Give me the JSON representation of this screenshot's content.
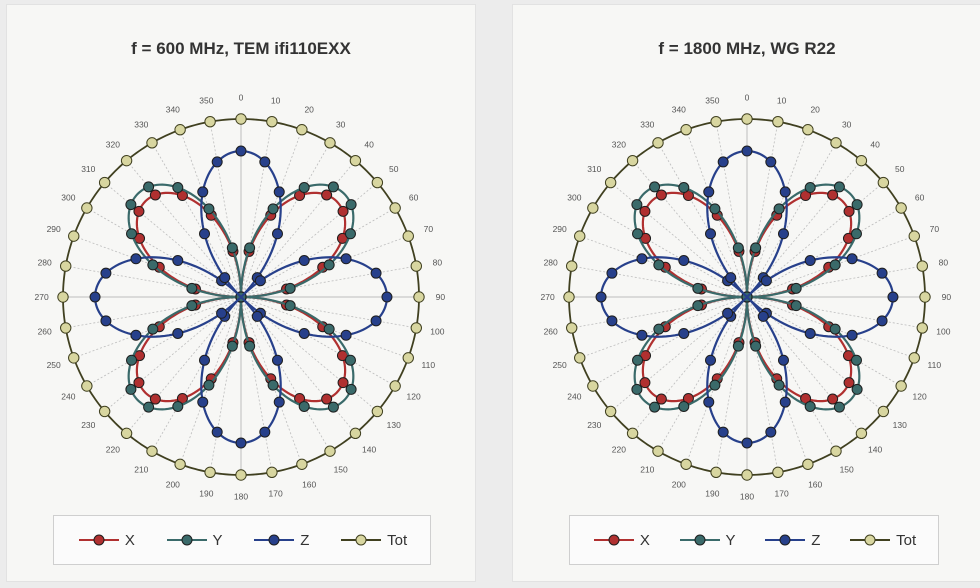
{
  "colors": {
    "X": "#b03030",
    "Y": "#3a6a6a",
    "Z": "#27408b",
    "Tot": "#d8d6a0",
    "ring": "#404020",
    "grid": "#bdbdbd"
  },
  "chart_data": [
    {
      "type": "polar",
      "title": "f = 600 MHz, TEM ifi110EXX",
      "angle_ticks_deg": [
        0,
        10,
        20,
        30,
        40,
        50,
        60,
        70,
        80,
        90,
        100,
        110,
        120,
        130,
        140,
        150,
        160,
        170,
        180,
        190,
        200,
        210,
        220,
        230,
        240,
        250,
        260,
        270,
        280,
        290,
        300,
        310,
        320,
        330,
        340,
        350
      ],
      "angle_labels": [
        "0",
        "10",
        "20",
        "30",
        "40",
        "50",
        "60",
        "70",
        "80",
        "90",
        "100",
        "110",
        "120",
        "130",
        "140",
        "150",
        "160",
        "170",
        "180",
        "190",
        "200",
        "210",
        "220",
        "230",
        "240",
        "250",
        "260",
        "270",
        "280",
        "290",
        "300",
        "310",
        "320",
        "330",
        "340",
        "350"
      ],
      "series": [
        {
          "name": "X",
          "model": "|sin(2θ)| lobes at 45°,135°,225°,315°",
          "peak": 0.76
        },
        {
          "name": "Y",
          "model": "|sin(2θ)| lobes at 45°,135°,225°,315°",
          "peak": 0.82
        },
        {
          "name": "Z",
          "model": "|cos(2θ)| lobes at 0°,90°,180°,270°",
          "peak": 0.82
        },
        {
          "name": "Tot",
          "model": "constant",
          "value": 1.0
        }
      ],
      "legend": [
        "X",
        "Y",
        "Z",
        "Tot"
      ],
      "legend_position": "bottom"
    },
    {
      "type": "polar",
      "title": "f = 1800 MHz, WG R22",
      "angle_ticks_deg": [
        0,
        10,
        20,
        30,
        40,
        50,
        60,
        70,
        80,
        90,
        100,
        110,
        120,
        130,
        140,
        150,
        160,
        170,
        180,
        190,
        200,
        210,
        220,
        230,
        240,
        250,
        260,
        270,
        280,
        290,
        300,
        310,
        320,
        330,
        340,
        350
      ],
      "angle_labels": [
        "0",
        "10",
        "20",
        "30",
        "40",
        "50",
        "60",
        "70",
        "80",
        "90",
        "100",
        "110",
        "120",
        "130",
        "140",
        "150",
        "160",
        "170",
        "180",
        "190",
        "200",
        "210",
        "220",
        "230",
        "240",
        "250",
        "260",
        "270",
        "280",
        "290",
        "300",
        "310",
        "320",
        "330",
        "340",
        "350"
      ],
      "series": [
        {
          "name": "X",
          "model": "|sin(2θ)| lobes at 45°,135°,225°,315°",
          "peak": 0.76
        },
        {
          "name": "Y",
          "model": "|sin(2θ)| lobes at 45°,135°,225°,315°",
          "peak": 0.82
        },
        {
          "name": "Z",
          "model": "|cos(2θ)| lobes at 0°,90°,180°,270°",
          "peak": 0.82
        },
        {
          "name": "Tot",
          "model": "constant",
          "value": 1.0
        }
      ],
      "legend": [
        "X",
        "Y",
        "Z",
        "Tot"
      ],
      "legend_position": "bottom"
    }
  ]
}
